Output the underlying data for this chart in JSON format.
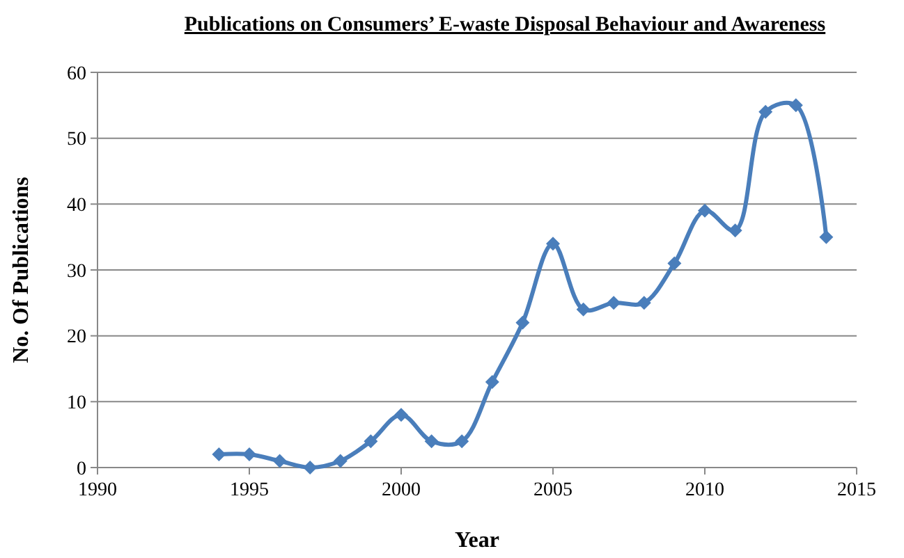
{
  "chart_data": {
    "type": "line",
    "title": "Publications on Consumers’ E-waste Disposal Behaviour and Awareness",
    "xlabel": "Year",
    "ylabel": "No. Of Publications",
    "x": [
      1994,
      1995,
      1996,
      1997,
      1998,
      1999,
      2000,
      2001,
      2002,
      2003,
      2004,
      2005,
      2006,
      2007,
      2008,
      2009,
      2010,
      2011,
      2012,
      2013,
      2014
    ],
    "series": [
      {
        "color": "#4a7ebb",
        "values": [
          2,
          2,
          1,
          0,
          1,
          4,
          8,
          4,
          4,
          13,
          22,
          34,
          24,
          25,
          25,
          31,
          39,
          36,
          54,
          55,
          35
        ]
      }
    ],
    "xlim": [
      1990,
      2015
    ],
    "xticks": [
      1990,
      1995,
      2000,
      2005,
      2010,
      2015
    ],
    "ylim": [
      0,
      60
    ],
    "yticks": [
      0,
      10,
      20,
      30,
      40,
      50,
      60
    ],
    "grid": "y",
    "marker": "diamond",
    "line_style": "solid"
  }
}
